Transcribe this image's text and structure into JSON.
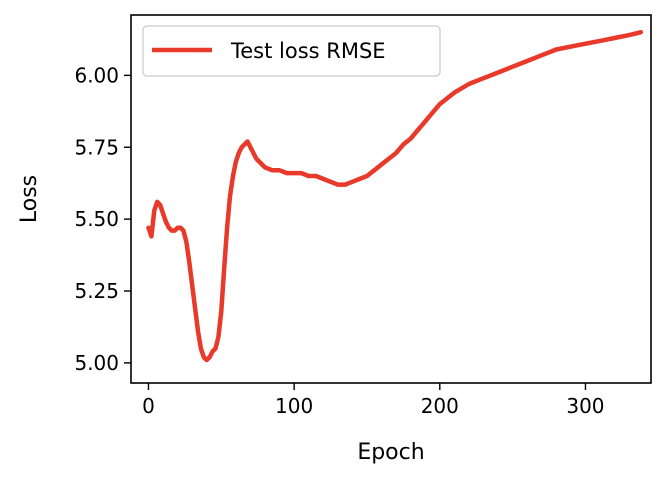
{
  "chart_data": {
    "type": "line",
    "title": "",
    "xlabel": "Epoch",
    "ylabel": "Loss",
    "xlim": [
      -12,
      345
    ],
    "ylim": [
      4.93,
      6.21
    ],
    "grid": false,
    "legend_position": "top-left",
    "xticks": [
      0,
      100,
      200,
      300
    ],
    "xtick_labels": [
      "0",
      "100",
      "200",
      "300"
    ],
    "yticks": [
      5.0,
      5.25,
      5.5,
      5.75,
      6.0
    ],
    "ytick_labels": [
      "5.00",
      "5.25",
      "5.50",
      "5.75",
      "6.00"
    ],
    "series": [
      {
        "name": "Test loss RMSE",
        "color": "#e8392a",
        "x": [
          0,
          2,
          4,
          6,
          8,
          10,
          12,
          14,
          16,
          18,
          20,
          22,
          24,
          26,
          28,
          30,
          32,
          34,
          36,
          38,
          40,
          42,
          44,
          46,
          48,
          50,
          52,
          54,
          56,
          58,
          60,
          62,
          64,
          66,
          68,
          70,
          72,
          74,
          76,
          78,
          80,
          85,
          90,
          95,
          100,
          105,
          110,
          115,
          120,
          125,
          130,
          135,
          140,
          145,
          150,
          155,
          160,
          165,
          170,
          175,
          180,
          185,
          190,
          195,
          200,
          210,
          220,
          230,
          240,
          250,
          260,
          270,
          280,
          290,
          300,
          310,
          320,
          330,
          338
        ],
        "y": [
          5.47,
          5.44,
          5.53,
          5.56,
          5.55,
          5.52,
          5.49,
          5.47,
          5.46,
          5.46,
          5.47,
          5.47,
          5.46,
          5.42,
          5.35,
          5.27,
          5.19,
          5.11,
          5.05,
          5.02,
          5.01,
          5.02,
          5.04,
          5.05,
          5.09,
          5.18,
          5.33,
          5.47,
          5.58,
          5.65,
          5.7,
          5.73,
          5.75,
          5.76,
          5.77,
          5.75,
          5.73,
          5.71,
          5.7,
          5.69,
          5.68,
          5.67,
          5.67,
          5.66,
          5.66,
          5.66,
          5.65,
          5.65,
          5.64,
          5.63,
          5.62,
          5.62,
          5.63,
          5.64,
          5.65,
          5.67,
          5.69,
          5.71,
          5.73,
          5.76,
          5.78,
          5.81,
          5.84,
          5.87,
          5.9,
          5.94,
          5.97,
          5.99,
          6.01,
          6.03,
          6.05,
          6.07,
          6.09,
          6.1,
          6.11,
          6.12,
          6.13,
          6.14,
          6.15
        ]
      }
    ]
  }
}
